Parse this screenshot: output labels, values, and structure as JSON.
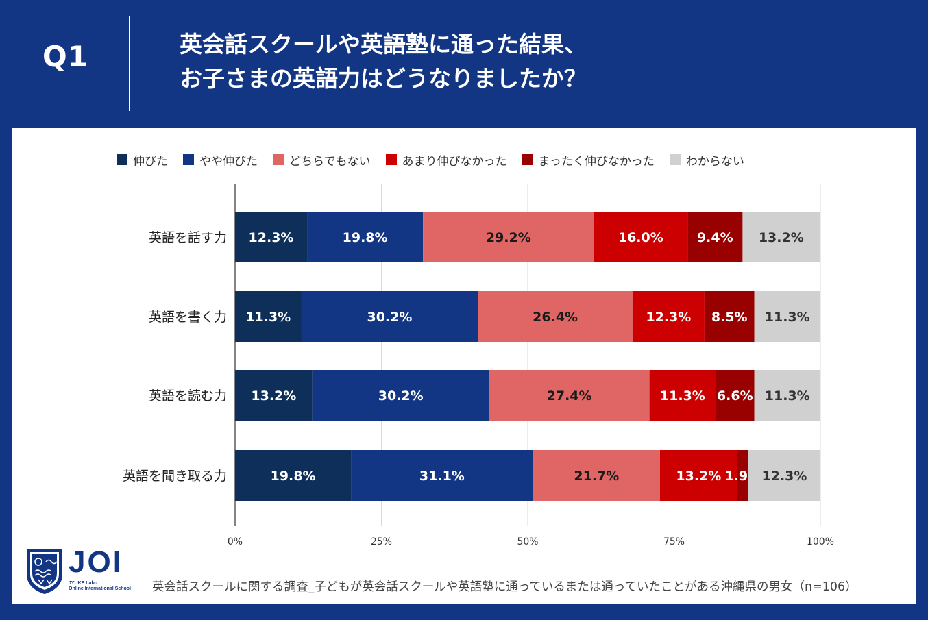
{
  "header": {
    "question_label": "Q1",
    "title_line1": "英会話スクールや英語塾に通った結果、",
    "title_line2": "お子さまの英語力はどうなりましたか？"
  },
  "chart_data": {
    "type": "bar",
    "orientation": "horizontal",
    "stacked": true,
    "xlim": [
      0,
      100
    ],
    "x_ticks": [
      "0%",
      "25%",
      "50%",
      "75%",
      "100%"
    ],
    "categories": [
      "英語を話す力",
      "英語を書く力",
      "英語を読む力",
      "英語を聞き取る力"
    ],
    "series": [
      {
        "name": "伸びた",
        "color": "#0d2f5a",
        "label_color": "#ffffff",
        "values": [
          12.3,
          11.3,
          13.2,
          19.8
        ],
        "labels": [
          "12.3%",
          "11.3%",
          "13.2%",
          "19.8%"
        ]
      },
      {
        "name": "やや伸びた",
        "color": "#133684",
        "label_color": "#ffffff",
        "values": [
          19.8,
          30.2,
          30.2,
          31.1
        ],
        "labels": [
          "19.8%",
          "30.2%",
          "30.2%",
          "31.1%"
        ]
      },
      {
        "name": "どちらでもない",
        "color": "#e06666",
        "label_color": "#1a1a1a",
        "values": [
          29.2,
          26.4,
          27.4,
          21.7
        ],
        "labels": [
          "29.2%",
          "26.4%",
          "27.4%",
          "21.7%"
        ]
      },
      {
        "name": "あまり伸びなかった",
        "color": "#cc0000",
        "label_color": "#ffffff",
        "values": [
          16.0,
          12.3,
          11.3,
          13.2
        ],
        "labels": [
          "16.0%",
          "12.3%",
          "11.3%",
          "13.2%"
        ]
      },
      {
        "name": "まったく伸びなかった",
        "color": "#990000",
        "label_color": "#ffffff",
        "values": [
          9.4,
          8.5,
          6.6,
          1.9
        ],
        "labels": [
          "9.4%",
          "8.5%",
          "6.6%",
          "1.9%"
        ]
      },
      {
        "name": "わからない",
        "color": "#d0d0d0",
        "label_color": "#333333",
        "values": [
          13.2,
          11.3,
          11.3,
          12.3
        ],
        "labels": [
          "13.2%",
          "11.3%",
          "11.3%",
          "12.3%"
        ]
      }
    ],
    "legend_position": "top",
    "grid": true
  },
  "logo": {
    "text": "JOI",
    "sub_line1": "JYUKE Labo.",
    "sub_line2": "Online International School"
  },
  "source_note": "英会話スクールに関する調査_子どもが英会話スクールや英語塾に通っているまたは通っていたことがある沖縄県の男女（n=106）",
  "colors": {
    "background": "#133684",
    "panel": "#ffffff"
  }
}
